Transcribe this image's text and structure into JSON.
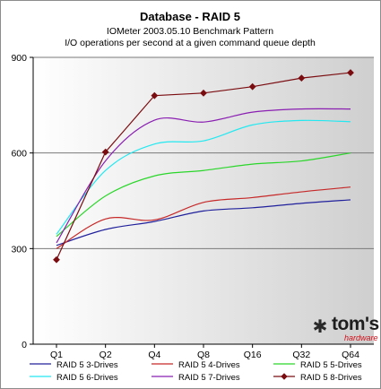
{
  "chart_data": {
    "type": "line",
    "title": "Database - RAID 5",
    "subtitle_lines": [
      "IOMeter 2003.05.10 Benchmark Pattern",
      "I/O operations per second at a given command queue depth"
    ],
    "categories": [
      "Q1",
      "Q2",
      "Q4",
      "Q8",
      "Q16",
      "Q32",
      "Q64"
    ],
    "y_ticks": [
      0,
      300,
      600,
      900
    ],
    "ylim": [
      0,
      900
    ],
    "grid": "horizontal",
    "background_gradient": true,
    "legend_position": "bottom",
    "series": [
      {
        "name": "RAID 5 3-Drives",
        "color": "#20209c",
        "marker": "none",
        "values": [
          310,
          360,
          385,
          418,
          428,
          442,
          453
        ]
      },
      {
        "name": "RAID 5 4-Drives",
        "color": "#c62828",
        "marker": "none",
        "values": [
          300,
          393,
          390,
          445,
          460,
          478,
          493
        ]
      },
      {
        "name": "RAID 5 5-Drives",
        "color": "#2ad62a",
        "marker": "none",
        "values": [
          338,
          465,
          528,
          545,
          565,
          575,
          600
        ]
      },
      {
        "name": "RAID 5 6-Drives",
        "color": "#23e8f0",
        "marker": "none",
        "values": [
          345,
          545,
          628,
          638,
          688,
          702,
          698
        ]
      },
      {
        "name": "RAID 5 7-Drives",
        "color": "#8a1fb2",
        "marker": "none",
        "values": [
          318,
          575,
          703,
          697,
          728,
          738,
          738
        ]
      },
      {
        "name": "RAID 5 8-Drives",
        "color": "#7a0c10",
        "marker": "diamond",
        "values": [
          265,
          603,
          780,
          788,
          808,
          835,
          852
        ]
      }
    ]
  },
  "watermark": {
    "glyph": "✱",
    "brand": "tom's",
    "sub": "hardware"
  }
}
